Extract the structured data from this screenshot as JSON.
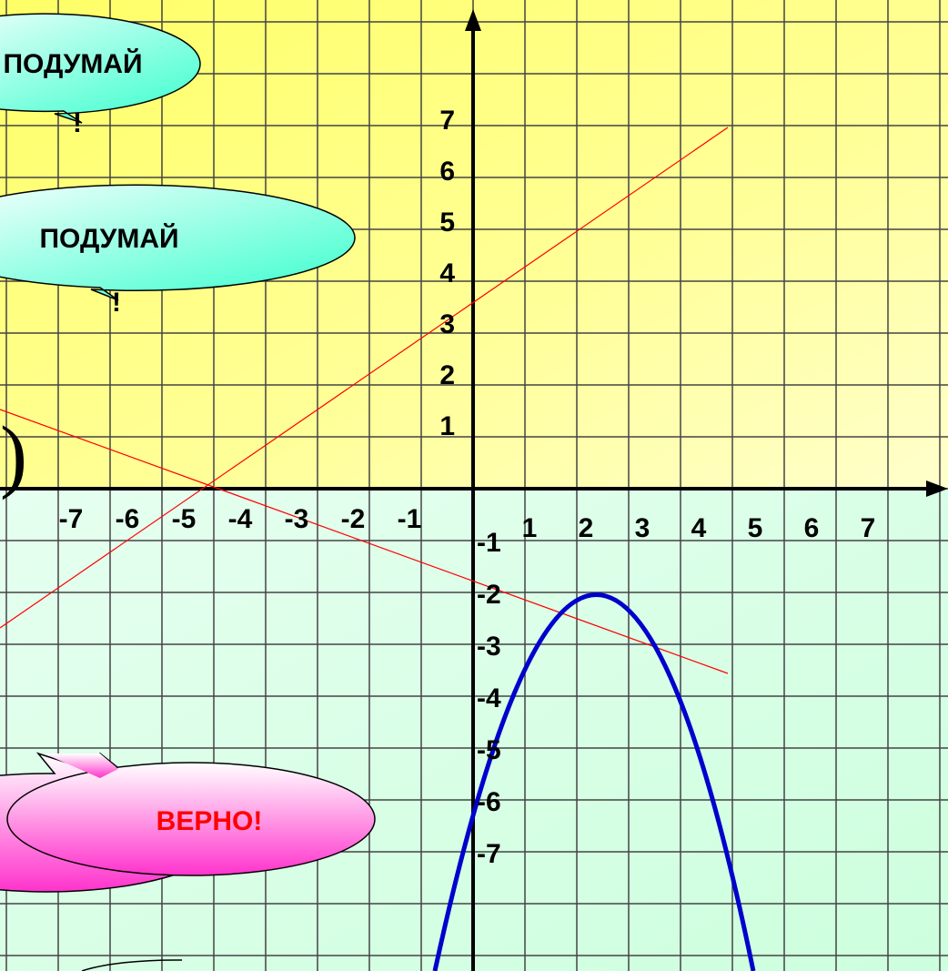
{
  "x_labels_negative": [
    -7,
    -6,
    -5,
    -4,
    -3,
    -2,
    -1
  ],
  "x_labels_positive": [
    1,
    2,
    3,
    4,
    5,
    6,
    7
  ],
  "y_labels_positive": [
    7,
    6,
    5,
    4,
    3,
    2,
    1
  ],
  "y_labels_negative": [
    -1,
    -2,
    -3,
    -4,
    -5,
    -6,
    -7
  ],
  "callouts": [
    {
      "line1": "ПОДУМАЙ",
      "line2": "!"
    },
    {
      "line1": "ПОДУМАЙ",
      "line2": "!"
    },
    {
      "line1": "ВЕРНО!"
    }
  ],
  "paren": ")"
}
